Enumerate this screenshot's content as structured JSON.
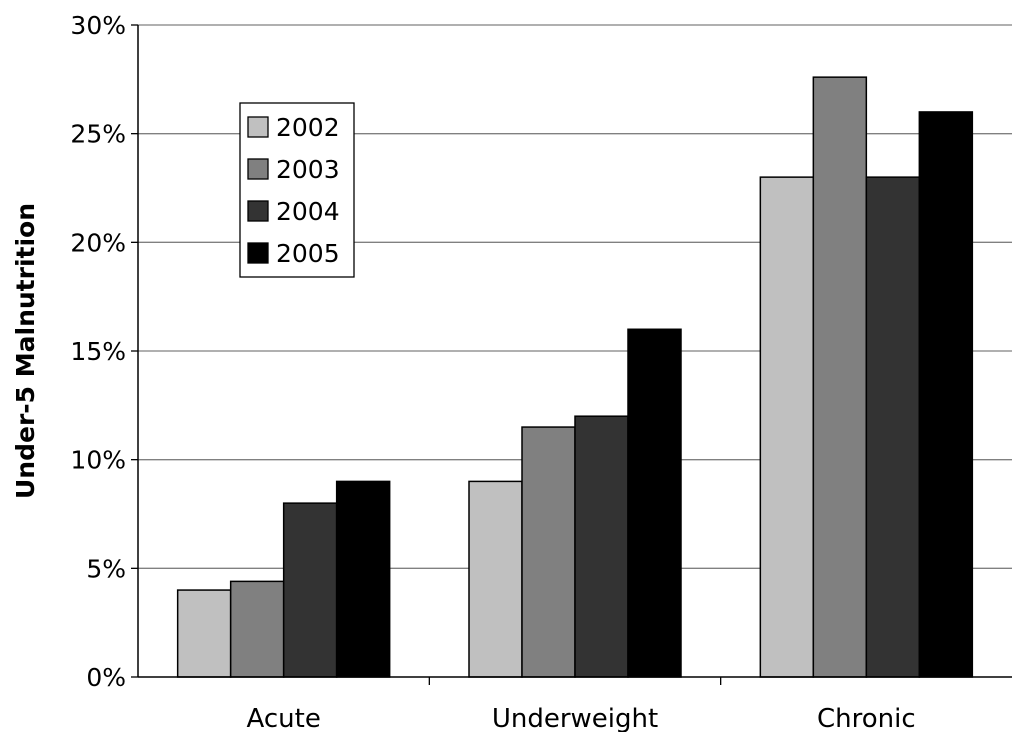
{
  "chart_data": {
    "type": "bar",
    "title": "",
    "xlabel": "",
    "ylabel": "Under-5 Malnutrition",
    "ylim": [
      0,
      30
    ],
    "y_ticks": [
      "0%",
      "5%",
      "10%",
      "15%",
      "20%",
      "25%",
      "30%"
    ],
    "y_unit": "%",
    "grid": true,
    "legend_position": "top-left",
    "categories": [
      "Acute",
      "Underweight",
      "Chronic"
    ],
    "series": [
      {
        "name": "2002",
        "color": "#c0c0c0",
        "values": [
          4.0,
          9.0,
          23.0
        ]
      },
      {
        "name": "2003",
        "color": "#808080",
        "values": [
          4.4,
          11.5,
          27.6
        ]
      },
      {
        "name": "2004",
        "color": "#333333",
        "values": [
          8.0,
          12.0,
          23.0
        ]
      },
      {
        "name": "2005",
        "color": "#000000",
        "values": [
          9.0,
          16.0,
          26.0
        ]
      }
    ]
  }
}
